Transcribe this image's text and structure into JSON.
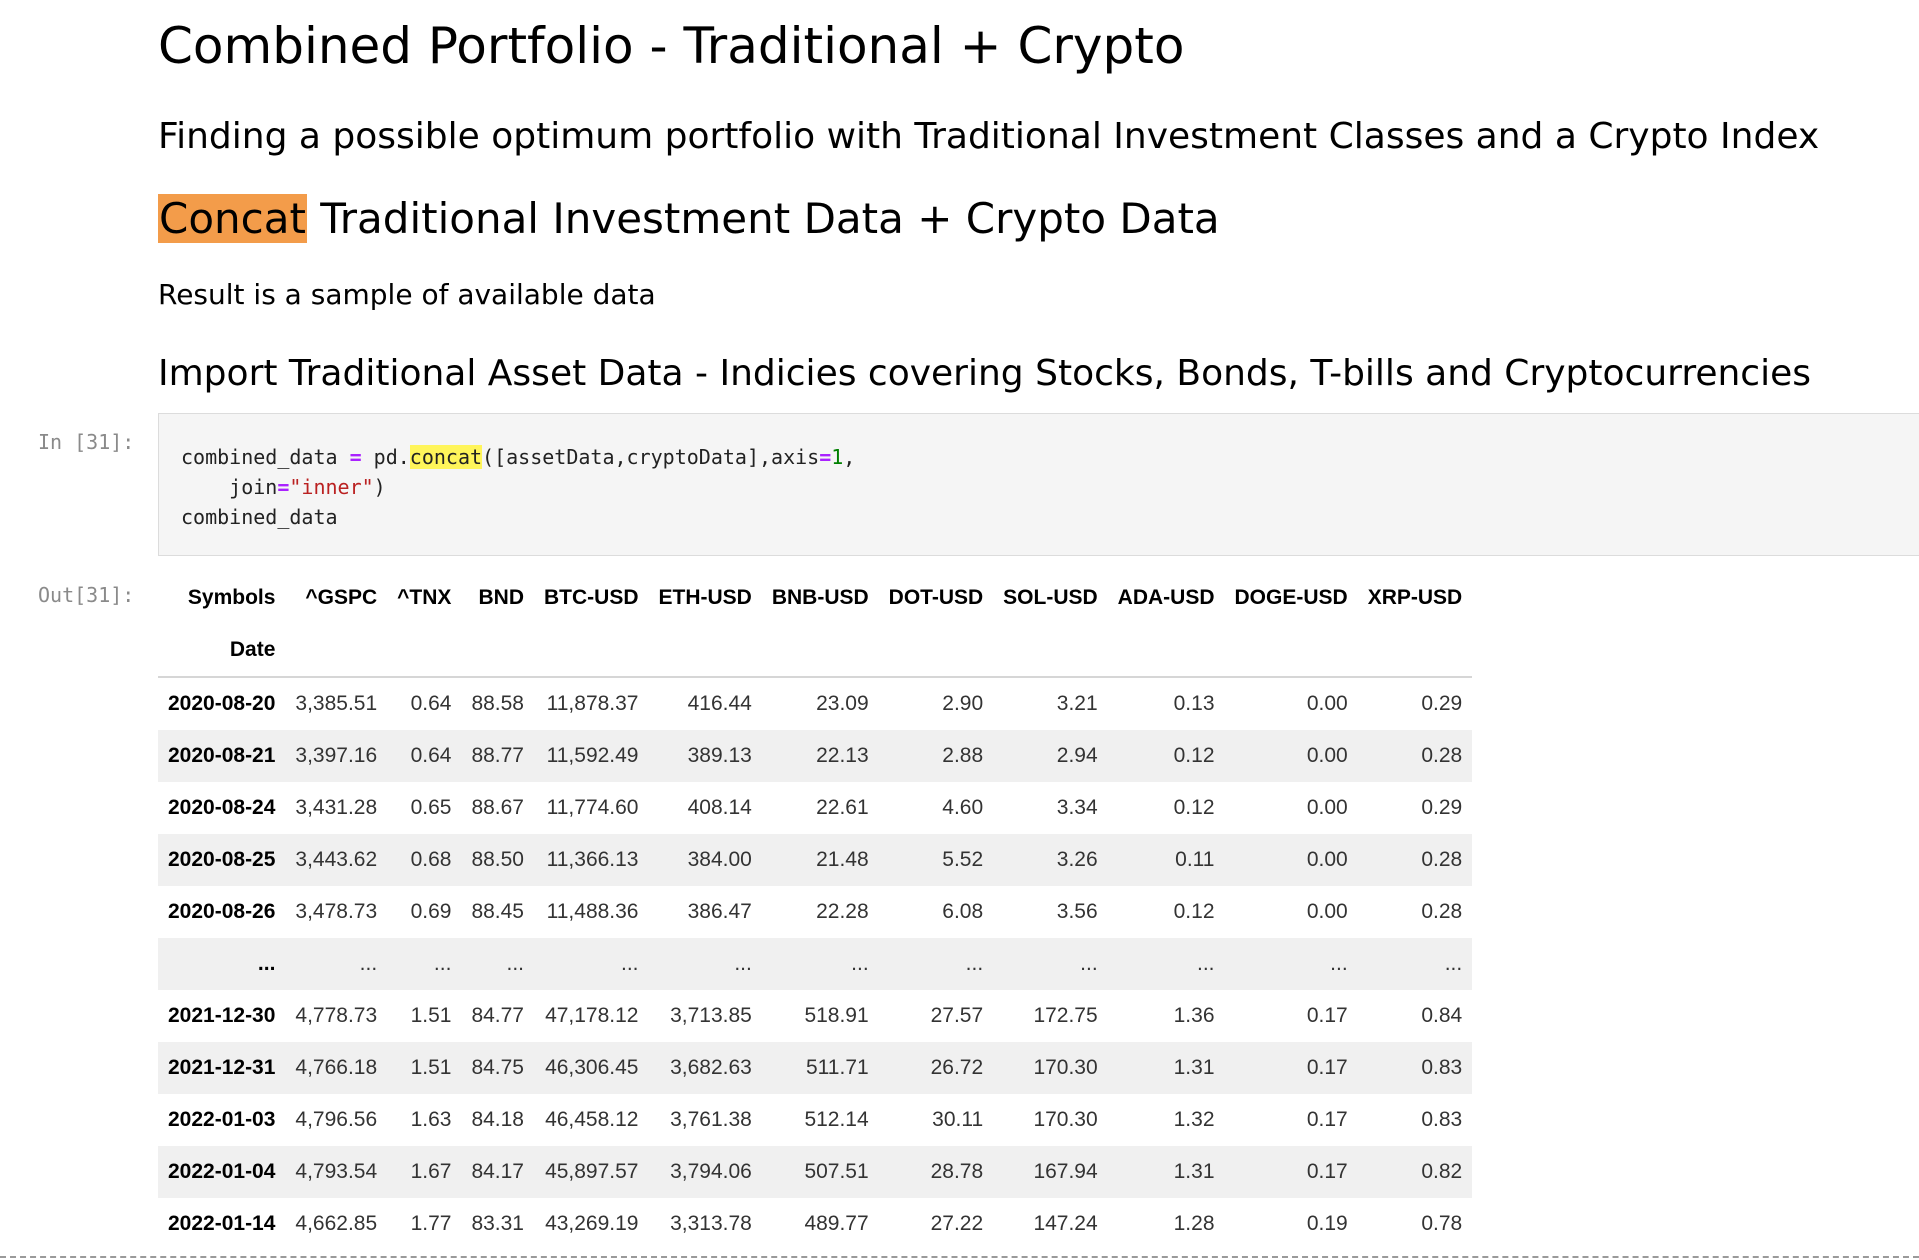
{
  "headings": {
    "title": "Combined Portfolio - Traditional + Crypto",
    "subtitle": "Finding a possible optimum portfolio with Traditional Investment Classes and a Crypto Index",
    "section_highlight": "Concat",
    "section_rest": " Traditional Investment Data + Crypto Data",
    "note": "Result is a sample of available data",
    "import_heading": "Import Traditional Asset Data - Indicies covering Stocks, Bonds, T-bills and Cryptocurrencies"
  },
  "cell": {
    "in_prompt": "In [31]:",
    "out_prompt": "Out[31]:",
    "code": {
      "t1": "combined_data ",
      "t2": "=",
      "t3": " pd.",
      "t4": "concat",
      "t5": "([assetData,cryptoData],axis",
      "t6": "=",
      "t7": "1",
      "t8": ",",
      "t9": "    join",
      "t10": "=",
      "t11": "\"inner\"",
      "t12": ")",
      "t13": "combined_data"
    }
  },
  "table": {
    "corner_label": "Symbols",
    "index_label": "Date",
    "columns": [
      "^GSPC",
      "^TNX",
      "BND",
      "BTC-USD",
      "ETH-USD",
      "BNB-USD",
      "DOT-USD",
      "SOL-USD",
      "ADA-USD",
      "DOGE-USD",
      "XRP-USD"
    ],
    "rows": [
      {
        "date": "2020-08-20",
        "values": [
          "3,385.51",
          "0.64",
          "88.58",
          "11,878.37",
          "416.44",
          "23.09",
          "2.90",
          "3.21",
          "0.13",
          "0.00",
          "0.29"
        ]
      },
      {
        "date": "2020-08-21",
        "values": [
          "3,397.16",
          "0.64",
          "88.77",
          "11,592.49",
          "389.13",
          "22.13",
          "2.88",
          "2.94",
          "0.12",
          "0.00",
          "0.28"
        ]
      },
      {
        "date": "2020-08-24",
        "values": [
          "3,431.28",
          "0.65",
          "88.67",
          "11,774.60",
          "408.14",
          "22.61",
          "4.60",
          "3.34",
          "0.12",
          "0.00",
          "0.29"
        ]
      },
      {
        "date": "2020-08-25",
        "values": [
          "3,443.62",
          "0.68",
          "88.50",
          "11,366.13",
          "384.00",
          "21.48",
          "5.52",
          "3.26",
          "0.11",
          "0.00",
          "0.28"
        ]
      },
      {
        "date": "2020-08-26",
        "values": [
          "3,478.73",
          "0.69",
          "88.45",
          "11,488.36",
          "386.47",
          "22.28",
          "6.08",
          "3.56",
          "0.12",
          "0.00",
          "0.28"
        ]
      },
      {
        "date": "...",
        "values": [
          "...",
          "...",
          "...",
          "...",
          "...",
          "...",
          "...",
          "...",
          "...",
          "...",
          "..."
        ]
      },
      {
        "date": "2021-12-30",
        "values": [
          "4,778.73",
          "1.51",
          "84.77",
          "47,178.12",
          "3,713.85",
          "518.91",
          "27.57",
          "172.75",
          "1.36",
          "0.17",
          "0.84"
        ]
      },
      {
        "date": "2021-12-31",
        "values": [
          "4,766.18",
          "1.51",
          "84.75",
          "46,306.45",
          "3,682.63",
          "511.71",
          "26.72",
          "170.30",
          "1.31",
          "0.17",
          "0.83"
        ]
      },
      {
        "date": "2022-01-03",
        "values": [
          "4,796.56",
          "1.63",
          "84.18",
          "46,458.12",
          "3,761.38",
          "512.14",
          "30.11",
          "170.30",
          "1.32",
          "0.17",
          "0.83"
        ]
      },
      {
        "date": "2022-01-04",
        "values": [
          "4,793.54",
          "1.67",
          "84.17",
          "45,897.57",
          "3,794.06",
          "507.51",
          "28.78",
          "167.94",
          "1.31",
          "0.17",
          "0.82"
        ]
      },
      {
        "date": "2022-01-14",
        "values": [
          "4,662.85",
          "1.77",
          "83.31",
          "43,269.19",
          "3,313.78",
          "489.77",
          "27.22",
          "147.24",
          "1.28",
          "0.19",
          "0.78"
        ]
      }
    ]
  }
}
